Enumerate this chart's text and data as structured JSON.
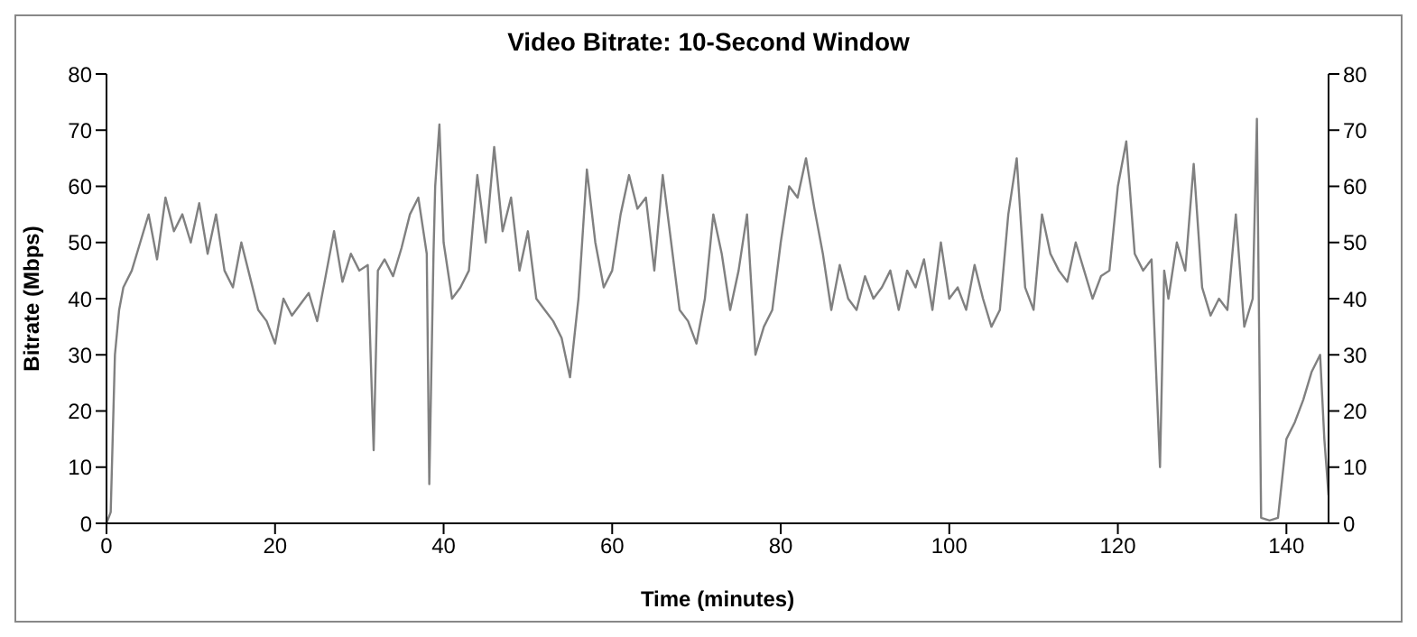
{
  "chart_data": {
    "type": "line",
    "title": "Video Bitrate: 10-Second Window",
    "xlabel": "Time (minutes)",
    "ylabel": "Bitrate (Mbps)",
    "x": [
      0,
      0.5,
      1,
      1.5,
      2,
      3,
      4,
      5,
      6,
      7,
      8,
      9,
      10,
      11,
      12,
      13,
      14,
      15,
      16,
      17,
      18,
      19,
      20,
      21,
      22,
      23,
      24,
      25,
      26,
      27,
      28,
      29,
      30,
      31,
      31.7,
      32.2,
      33,
      34,
      35,
      36,
      37,
      38,
      38.3,
      38.8,
      39,
      39.5,
      40,
      41,
      42,
      43,
      44,
      45,
      46,
      47,
      48,
      49,
      50,
      51,
      52,
      53,
      54,
      55,
      56,
      57,
      58,
      59,
      60,
      61,
      62,
      63,
      64,
      65,
      66,
      67,
      68,
      69,
      70,
      71,
      72,
      73,
      74,
      75,
      76,
      77,
      78,
      79,
      80,
      81,
      82,
      83,
      84,
      85,
      86,
      87,
      88,
      89,
      90,
      91,
      92,
      93,
      94,
      95,
      96,
      97,
      98,
      99,
      100,
      101,
      102,
      103,
      104,
      105,
      106,
      107,
      108,
      109,
      110,
      111,
      112,
      113,
      114,
      115,
      116,
      117,
      118,
      119,
      120,
      121,
      122,
      123,
      124,
      125,
      125.5,
      126,
      127,
      128,
      129,
      130,
      131,
      132,
      133,
      134,
      135,
      136,
      136.5,
      137,
      138,
      139,
      140,
      141,
      142,
      143,
      144,
      144.5,
      145
    ],
    "series": [
      {
        "color": "#808080",
        "values": [
          0,
          2,
          30,
          38,
          42,
          45,
          50,
          55,
          47,
          58,
          52,
          55,
          50,
          57,
          48,
          55,
          45,
          42,
          50,
          44,
          38,
          36,
          32,
          40,
          37,
          39,
          41,
          36,
          44,
          52,
          43,
          48,
          45,
          46,
          13,
          45,
          47,
          44,
          49,
          55,
          58,
          48,
          7,
          48,
          60,
          71,
          50,
          40,
          42,
          45,
          62,
          50,
          67,
          52,
          58,
          45,
          52,
          40,
          38,
          36,
          33,
          26,
          40,
          63,
          50,
          42,
          45,
          55,
          62,
          56,
          58,
          45,
          62,
          50,
          38,
          36,
          32,
          40,
          55,
          48,
          38,
          45,
          55,
          30,
          35,
          38,
          50,
          60,
          58,
          65,
          56,
          48,
          38,
          46,
          40,
          38,
          44,
          40,
          42,
          45,
          38,
          45,
          42,
          47,
          38,
          50,
          40,
          42,
          38,
          46,
          40,
          35,
          38,
          55,
          65,
          42,
          38,
          55,
          48,
          45,
          43,
          50,
          45,
          40,
          44,
          45,
          60,
          68,
          48,
          45,
          47,
          10,
          45,
          40,
          50,
          45,
          64,
          42,
          37,
          40,
          38,
          55,
          35,
          40,
          72,
          1,
          0.5,
          1,
          15,
          18,
          22,
          27,
          30,
          15,
          5
        ]
      }
    ],
    "xlim": [
      0,
      145
    ],
    "xticks": [
      0,
      20,
      40,
      60,
      80,
      100,
      120,
      140
    ],
    "ylim": [
      0,
      80
    ],
    "yticks": [
      0,
      10,
      20,
      30,
      40,
      50,
      60,
      70,
      80
    ],
    "y2lim": [
      0,
      80
    ],
    "y2ticks": [
      0,
      10,
      20,
      30,
      40,
      50,
      60,
      70,
      80
    ],
    "grid": false,
    "legend": false,
    "marker": "none",
    "line_style": "solid"
  }
}
